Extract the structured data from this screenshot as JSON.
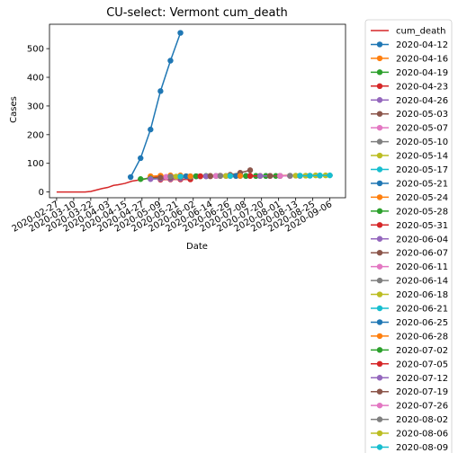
{
  "chart_data": {
    "type": "line",
    "title": "CU-select: Vermont cum_death",
    "xlabel": "Date",
    "ylabel": "Cases",
    "x_range": [
      "2020-02-22",
      "2020-09-17"
    ],
    "ylim": [
      -20,
      585
    ],
    "xticks": [
      "2020-02-27",
      "2020-03-10",
      "2020-03-22",
      "2020-04-03",
      "2020-04-15",
      "2020-04-27",
      "2020-05-09",
      "2020-05-21",
      "2020-06-02",
      "2020-06-14",
      "2020-06-26",
      "2020-07-08",
      "2020-07-20",
      "2020-08-01",
      "2020-08-13",
      "2020-08-25",
      "2020-09-06"
    ],
    "yticks": [
      0,
      100,
      200,
      300,
      400,
      500
    ],
    "grid": false,
    "legend_position": "outside-right",
    "series": [
      {
        "name": "cum_death",
        "color": "#d62728",
        "marker": false,
        "points": [
          [
            "2020-02-27",
            0
          ],
          [
            "2020-03-10",
            0
          ],
          [
            "2020-03-18",
            0
          ],
          [
            "2020-03-22",
            2
          ],
          [
            "2020-03-26",
            7
          ],
          [
            "2020-03-30",
            12
          ],
          [
            "2020-04-03",
            16
          ],
          [
            "2020-04-07",
            23
          ],
          [
            "2020-04-10",
            25
          ],
          [
            "2020-04-15",
            30
          ],
          [
            "2020-04-20",
            38
          ],
          [
            "2020-04-24",
            41
          ],
          [
            "2020-04-28",
            44
          ],
          [
            "2020-05-02",
            50
          ],
          [
            "2020-05-10",
            52
          ],
          [
            "2020-05-20",
            54
          ],
          [
            "2020-06-01",
            55
          ],
          [
            "2020-06-14",
            55
          ],
          [
            "2020-06-26",
            56
          ],
          [
            "2020-07-08",
            56
          ],
          [
            "2020-07-20",
            56
          ],
          [
            "2020-08-01",
            57
          ],
          [
            "2020-08-13",
            58
          ],
          [
            "2020-08-25",
            58
          ],
          [
            "2020-09-06",
            58
          ],
          [
            "2020-09-08",
            58
          ]
        ]
      },
      {
        "name": "2020-04-12",
        "color": "#1f77b4",
        "marker": true,
        "points": [
          [
            "2020-04-19",
            52
          ],
          [
            "2020-04-26",
            118
          ],
          [
            "2020-05-03",
            218
          ],
          [
            "2020-05-10",
            352
          ],
          [
            "2020-05-17",
            458
          ],
          [
            "2020-05-24",
            555
          ]
        ]
      },
      {
        "name": "2020-04-16",
        "color": "#ff7f0e",
        "marker": true,
        "points": [
          [
            "2020-05-03",
            55
          ],
          [
            "2020-05-10",
            57
          ],
          [
            "2020-05-17",
            58
          ],
          [
            "2020-05-24",
            58
          ]
        ]
      },
      {
        "name": "2020-04-19",
        "color": "#2ca02c",
        "marker": true,
        "points": [
          [
            "2020-04-26",
            45
          ],
          [
            "2020-05-03",
            47
          ],
          [
            "2020-05-10",
            48
          ],
          [
            "2020-05-17",
            48
          ]
        ]
      },
      {
        "name": "2020-04-23",
        "color": "#d62728",
        "marker": true,
        "points": [
          [
            "2020-05-10",
            43
          ],
          [
            "2020-05-17",
            44
          ],
          [
            "2020-05-24",
            44
          ],
          [
            "2020-05-31",
            44
          ]
        ]
      },
      {
        "name": "2020-04-26",
        "color": "#9467bd",
        "marker": true,
        "points": [
          [
            "2020-05-03",
            45
          ],
          [
            "2020-05-10",
            46
          ],
          [
            "2020-05-17",
            46
          ],
          [
            "2020-05-24",
            47
          ]
        ]
      },
      {
        "name": "2020-05-03",
        "color": "#8c564b",
        "marker": true,
        "points": [
          [
            "2020-05-10",
            50
          ],
          [
            "2020-05-17",
            50
          ],
          [
            "2020-05-24",
            51
          ],
          [
            "2020-05-31",
            51
          ]
        ]
      },
      {
        "name": "2020-05-07",
        "color": "#e377c2",
        "marker": true,
        "points": [
          [
            "2020-05-14",
            53
          ],
          [
            "2020-05-21",
            53
          ],
          [
            "2020-05-28",
            54
          ],
          [
            "2020-06-04",
            54
          ]
        ]
      },
      {
        "name": "2020-05-10",
        "color": "#7f7f7f",
        "marker": true,
        "points": [
          [
            "2020-05-17",
            54
          ],
          [
            "2020-05-24",
            54
          ],
          [
            "2020-05-31",
            54
          ],
          [
            "2020-06-07",
            55
          ]
        ]
      },
      {
        "name": "2020-05-14",
        "color": "#bcbd22",
        "marker": true,
        "points": [
          [
            "2020-05-21",
            54
          ],
          [
            "2020-05-28",
            55
          ],
          [
            "2020-06-04",
            55
          ],
          [
            "2020-06-11",
            55
          ]
        ]
      },
      {
        "name": "2020-05-17",
        "color": "#17becf",
        "marker": true,
        "points": [
          [
            "2020-05-24",
            54
          ],
          [
            "2020-05-31",
            55
          ],
          [
            "2020-06-07",
            55
          ],
          [
            "2020-06-14",
            55
          ]
        ]
      },
      {
        "name": "2020-05-21",
        "color": "#1f77b4",
        "marker": true,
        "points": [
          [
            "2020-05-28",
            55
          ],
          [
            "2020-06-04",
            55
          ],
          [
            "2020-06-11",
            55
          ],
          [
            "2020-06-18",
            56
          ]
        ]
      },
      {
        "name": "2020-05-24",
        "color": "#ff7f0e",
        "marker": true,
        "points": [
          [
            "2020-05-31",
            55
          ],
          [
            "2020-06-07",
            55
          ],
          [
            "2020-06-14",
            56
          ],
          [
            "2020-06-21",
            56
          ]
        ]
      },
      {
        "name": "2020-05-28",
        "color": "#2ca02c",
        "marker": true,
        "points": [
          [
            "2020-06-04",
            55
          ],
          [
            "2020-06-11",
            56
          ],
          [
            "2020-06-18",
            56
          ],
          [
            "2020-06-25",
            56
          ]
        ]
      },
      {
        "name": "2020-05-31",
        "color": "#d62728",
        "marker": true,
        "points": [
          [
            "2020-06-07",
            55
          ],
          [
            "2020-06-14",
            55
          ],
          [
            "2020-06-21",
            56
          ],
          [
            "2020-06-28",
            56
          ]
        ]
      },
      {
        "name": "2020-06-04",
        "color": "#9467bd",
        "marker": true,
        "points": [
          [
            "2020-06-11",
            55
          ],
          [
            "2020-06-18",
            56
          ],
          [
            "2020-06-25",
            56
          ],
          [
            "2020-07-02",
            56
          ]
        ]
      },
      {
        "name": "2020-06-07",
        "color": "#8c564b",
        "marker": true,
        "points": [
          [
            "2020-06-14",
            56
          ],
          [
            "2020-06-21",
            57
          ],
          [
            "2020-06-28",
            60
          ],
          [
            "2020-07-05",
            67
          ],
          [
            "2020-07-12",
            76
          ]
        ]
      },
      {
        "name": "2020-06-11",
        "color": "#e377c2",
        "marker": true,
        "points": [
          [
            "2020-06-18",
            56
          ],
          [
            "2020-06-25",
            56
          ],
          [
            "2020-07-02",
            56
          ],
          [
            "2020-07-09",
            56
          ]
        ]
      },
      {
        "name": "2020-06-14",
        "color": "#7f7f7f",
        "marker": true,
        "points": [
          [
            "2020-06-21",
            56
          ],
          [
            "2020-06-28",
            56
          ],
          [
            "2020-07-05",
            56
          ],
          [
            "2020-07-12",
            56
          ]
        ]
      },
      {
        "name": "2020-06-18",
        "color": "#bcbd22",
        "marker": true,
        "points": [
          [
            "2020-06-25",
            56
          ],
          [
            "2020-07-02",
            56
          ],
          [
            "2020-07-09",
            56
          ],
          [
            "2020-07-16",
            56
          ]
        ]
      },
      {
        "name": "2020-06-21",
        "color": "#17becf",
        "marker": true,
        "points": [
          [
            "2020-06-28",
            56
          ],
          [
            "2020-07-05",
            56
          ],
          [
            "2020-07-12",
            56
          ],
          [
            "2020-07-19",
            56
          ]
        ]
      },
      {
        "name": "2020-06-25",
        "color": "#1f77b4",
        "marker": true,
        "points": [
          [
            "2020-07-02",
            56
          ],
          [
            "2020-07-09",
            56
          ],
          [
            "2020-07-16",
            56
          ],
          [
            "2020-07-23",
            56
          ]
        ]
      },
      {
        "name": "2020-06-28",
        "color": "#ff7f0e",
        "marker": true,
        "points": [
          [
            "2020-07-05",
            56
          ],
          [
            "2020-07-12",
            56
          ],
          [
            "2020-07-19",
            56
          ],
          [
            "2020-07-26",
            56
          ]
        ]
      },
      {
        "name": "2020-07-02",
        "color": "#2ca02c",
        "marker": true,
        "points": [
          [
            "2020-07-09",
            56
          ],
          [
            "2020-07-16",
            56
          ],
          [
            "2020-07-23",
            56
          ],
          [
            "2020-07-30",
            56
          ]
        ]
      },
      {
        "name": "2020-07-05",
        "color": "#d62728",
        "marker": true,
        "points": [
          [
            "2020-07-12",
            56
          ],
          [
            "2020-07-19",
            56
          ],
          [
            "2020-07-26",
            56
          ],
          [
            "2020-08-02",
            56
          ]
        ]
      },
      {
        "name": "2020-07-12",
        "color": "#9467bd",
        "marker": true,
        "points": [
          [
            "2020-07-19",
            56
          ],
          [
            "2020-07-26",
            56
          ],
          [
            "2020-08-02",
            56
          ],
          [
            "2020-08-09",
            56
          ]
        ]
      },
      {
        "name": "2020-07-19",
        "color": "#8c564b",
        "marker": true,
        "points": [
          [
            "2020-07-26",
            56
          ],
          [
            "2020-08-02",
            56
          ],
          [
            "2020-08-09",
            56
          ],
          [
            "2020-08-16",
            56
          ]
        ]
      },
      {
        "name": "2020-07-26",
        "color": "#e377c2",
        "marker": true,
        "points": [
          [
            "2020-08-02",
            56
          ],
          [
            "2020-08-09",
            56
          ],
          [
            "2020-08-16",
            56
          ],
          [
            "2020-08-23",
            57
          ]
        ]
      },
      {
        "name": "2020-08-02",
        "color": "#7f7f7f",
        "marker": true,
        "points": [
          [
            "2020-08-09",
            57
          ],
          [
            "2020-08-16",
            57
          ],
          [
            "2020-08-23",
            57
          ],
          [
            "2020-08-30",
            57
          ]
        ]
      },
      {
        "name": "2020-08-06",
        "color": "#bcbd22",
        "marker": true,
        "points": [
          [
            "2020-08-13",
            57
          ],
          [
            "2020-08-20",
            57
          ],
          [
            "2020-08-27",
            58
          ],
          [
            "2020-09-03",
            58
          ]
        ]
      },
      {
        "name": "2020-08-09",
        "color": "#17becf",
        "marker": true,
        "points": [
          [
            "2020-08-16",
            57
          ],
          [
            "2020-08-23",
            57
          ],
          [
            "2020-08-30",
            58
          ],
          [
            "2020-09-06",
            58
          ]
        ]
      }
    ]
  }
}
